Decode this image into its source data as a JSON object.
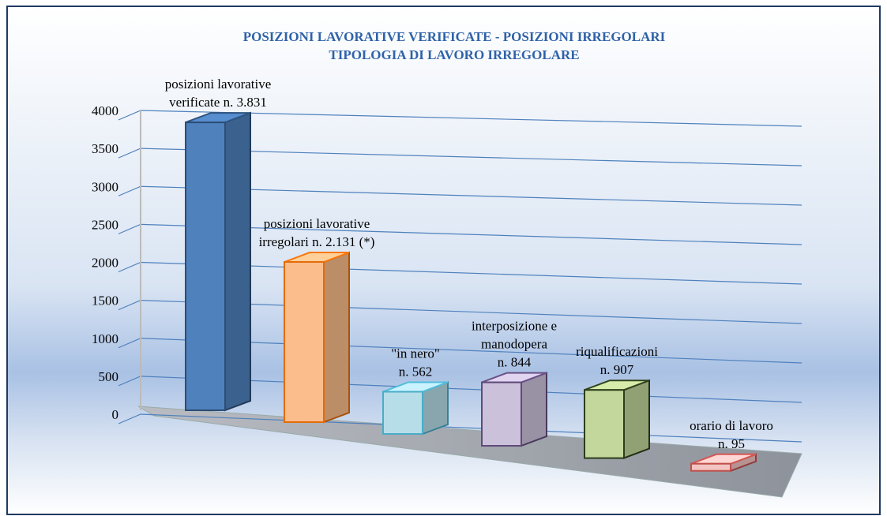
{
  "chart_data": {
    "type": "bar3d",
    "title": [
      "POSIZIONI LAVORATIVE VERIFICATE - POSIZIONI IRREGOLARI",
      "TIPOLOGIA DI LAVORO IRREGOLARE"
    ],
    "categories": [
      null,
      null,
      null,
      null,
      null,
      null
    ],
    "values": [
      3831,
      2131,
      562,
      844,
      907,
      95
    ],
    "value_labels": [
      [
        "posizioni lavorative",
        "verificate n. 3.831"
      ],
      [
        "posizioni lavorative",
        "irregolari n. 2.131 (*)"
      ],
      [
        "\"in nero\"",
        "n. 562"
      ],
      [
        "interposizione e",
        "manodopera",
        "n. 844"
      ],
      [
        "riqualificazioni",
        "n. 907"
      ],
      [
        "orario di lavoro",
        "n. 95"
      ]
    ],
    "colors": [
      "#4f81bd",
      "#fbbd8b",
      "#b7dde8",
      "#ccc1da",
      "#c3d69b",
      "#f2c4c2"
    ],
    "edge_colors": [
      "#2c4d75",
      "#e46c0a",
      "#4bacc6",
      "#604a7b",
      "#2c3e1a",
      "#c0504d"
    ],
    "ylim": [
      0,
      4000
    ],
    "yticks": [
      0,
      500,
      1000,
      1500,
      2000,
      2500,
      3000,
      3500,
      4000
    ],
    "grid": true
  }
}
